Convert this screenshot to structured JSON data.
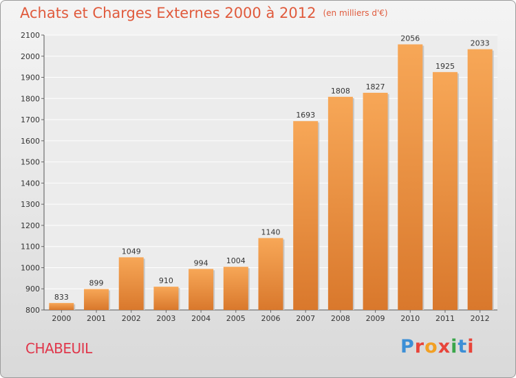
{
  "header": {
    "title": "Achats et Charges Externes 2000 à 2012",
    "unit": "(en milliers d'€)"
  },
  "footer": {
    "city": "CHABEUIL",
    "logo_text": "Proxiti"
  },
  "colors": {
    "title": "#e05a3c",
    "bar_light": "#f7a757",
    "bar_dark": "#d9782c",
    "city": "#e0364a",
    "logo_letters": [
      "#3c8fd6",
      "#e8443a",
      "#f2a024",
      "#e8443a",
      "#3aa64a",
      "#3c8fd6",
      "#e8443a"
    ]
  },
  "chart_data": {
    "type": "bar",
    "title": "Achats et Charges Externes 2000 à 2012",
    "subtitle": "(en milliers d'€)",
    "categories": [
      "2000",
      "2001",
      "2002",
      "2003",
      "2004",
      "2005",
      "2006",
      "2007",
      "2008",
      "2009",
      "2010",
      "2011",
      "2012"
    ],
    "values": [
      833,
      899,
      1049,
      910,
      994,
      1004,
      1140,
      1693,
      1808,
      1827,
      2056,
      1925,
      2033
    ],
    "ylim": [
      800,
      2100
    ],
    "yticks": [
      800,
      900,
      1000,
      1100,
      1200,
      1300,
      1400,
      1500,
      1600,
      1700,
      1800,
      1900,
      2000,
      2100
    ],
    "xlabel": "",
    "ylabel": "",
    "grid": true
  }
}
